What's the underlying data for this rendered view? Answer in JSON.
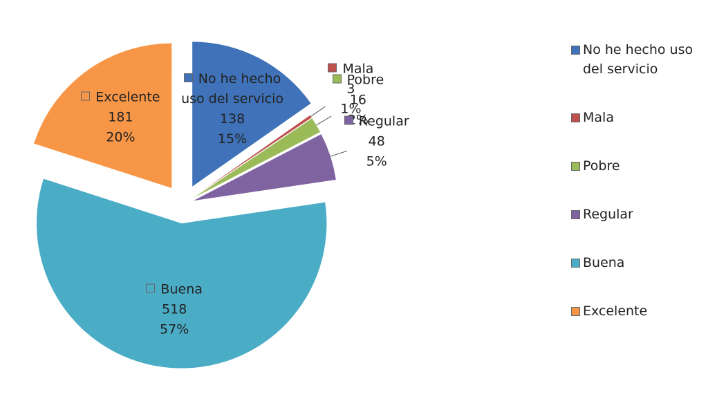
{
  "chart_data": {
    "type": "pie",
    "categories": [
      "No he hecho uso del servicio",
      "Mala",
      "Pobre",
      "Regular",
      "Buena",
      "Excelente"
    ],
    "values": [
      138,
      3,
      16,
      48,
      518,
      181
    ],
    "percent_labels": [
      "15%",
      "1%",
      "2%",
      "5%",
      "57%",
      "20%"
    ],
    "colors": [
      "#3f72b8",
      "#c0504d",
      "#9bbb59",
      "#8064a2",
      "#4bacc6",
      "#f79646"
    ],
    "legend": "right"
  }
}
